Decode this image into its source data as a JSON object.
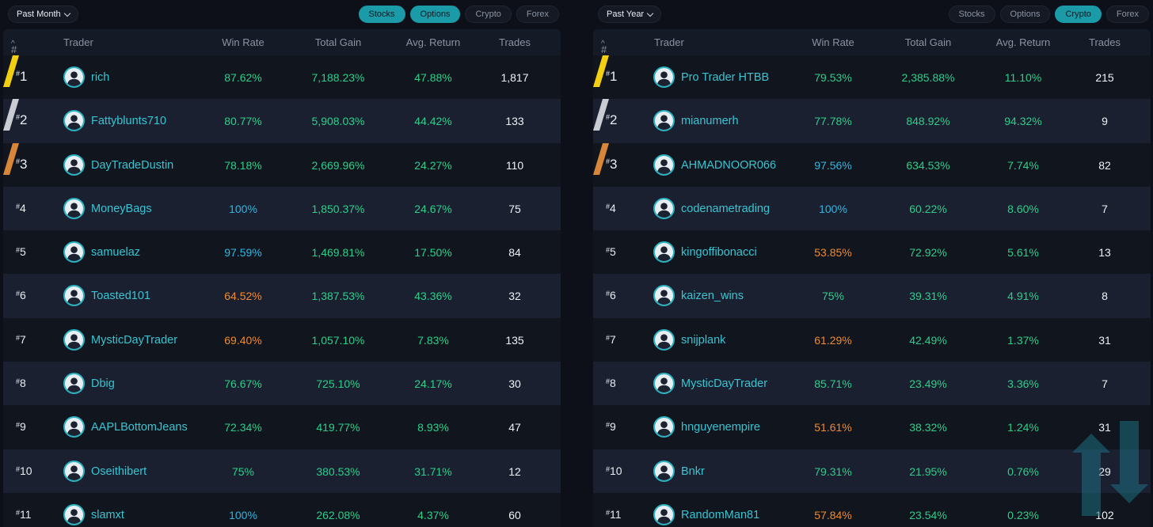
{
  "left": {
    "range": "Past Month",
    "filters": [
      {
        "label": "Stocks",
        "active": true
      },
      {
        "label": "Options",
        "active": true
      },
      {
        "label": "Crypto",
        "active": false
      },
      {
        "label": "Forex",
        "active": false
      }
    ],
    "headers": {
      "rank": "#",
      "trader": "Trader",
      "win_rate": "Win Rate",
      "total_gain": "Total Gain",
      "avg_return": "Avg. Return",
      "trades": "Trades"
    },
    "rows": [
      {
        "rank": "1",
        "trader": "rich",
        "win_rate": "87.62%",
        "win_color": "green",
        "total_gain": "7,188.23%",
        "avg_return": "47.88%",
        "trades": "1,817"
      },
      {
        "rank": "2",
        "trader": "Fattyblunts710",
        "win_rate": "80.77%",
        "win_color": "green",
        "total_gain": "5,908.03%",
        "avg_return": "44.42%",
        "trades": "133"
      },
      {
        "rank": "3",
        "trader": "DayTradeDustin",
        "win_rate": "78.18%",
        "win_color": "green",
        "total_gain": "2,669.96%",
        "avg_return": "24.27%",
        "trades": "110"
      },
      {
        "rank": "4",
        "trader": "MoneyBags",
        "win_rate": "100%",
        "win_color": "blue",
        "total_gain": "1,850.37%",
        "avg_return": "24.67%",
        "trades": "75"
      },
      {
        "rank": "5",
        "trader": "samuelaz",
        "win_rate": "97.59%",
        "win_color": "blue",
        "total_gain": "1,469.81%",
        "avg_return": "17.50%",
        "trades": "84"
      },
      {
        "rank": "6",
        "trader": "Toasted101",
        "win_rate": "64.52%",
        "win_color": "orange",
        "total_gain": "1,387.53%",
        "avg_return": "43.36%",
        "trades": "32"
      },
      {
        "rank": "7",
        "trader": "MysticDayTrader",
        "win_rate": "69.40%",
        "win_color": "orange",
        "total_gain": "1,057.10%",
        "avg_return": "7.83%",
        "trades": "135"
      },
      {
        "rank": "8",
        "trader": "Dbig",
        "win_rate": "76.67%",
        "win_color": "green",
        "total_gain": "725.10%",
        "avg_return": "24.17%",
        "trades": "30"
      },
      {
        "rank": "9",
        "trader": "AAPLBottomJeans",
        "win_rate": "72.34%",
        "win_color": "green",
        "total_gain": "419.77%",
        "avg_return": "8.93%",
        "trades": "47"
      },
      {
        "rank": "10",
        "trader": "Oseithibert",
        "win_rate": "75%",
        "win_color": "green",
        "total_gain": "380.53%",
        "avg_return": "31.71%",
        "trades": "12"
      },
      {
        "rank": "11",
        "trader": "slamxt",
        "win_rate": "100%",
        "win_color": "blue",
        "total_gain": "262.08%",
        "avg_return": "4.37%",
        "trades": "60"
      }
    ]
  },
  "right": {
    "range": "Past Year",
    "filters": [
      {
        "label": "Stocks",
        "active": false
      },
      {
        "label": "Options",
        "active": false
      },
      {
        "label": "Crypto",
        "active": true
      },
      {
        "label": "Forex",
        "active": false
      }
    ],
    "headers": {
      "rank": "#",
      "trader": "Trader",
      "win_rate": "Win Rate",
      "total_gain": "Total Gain",
      "avg_return": "Avg. Return",
      "trades": "Trades"
    },
    "rows": [
      {
        "rank": "1",
        "trader": "Pro Trader HTBB",
        "win_rate": "79.53%",
        "win_color": "green",
        "total_gain": "2,385.88%",
        "avg_return": "11.10%",
        "trades": "215"
      },
      {
        "rank": "2",
        "trader": "mianumerh",
        "win_rate": "77.78%",
        "win_color": "green",
        "total_gain": "848.92%",
        "avg_return": "94.32%",
        "trades": "9"
      },
      {
        "rank": "3",
        "trader": "AHMADNOOR066",
        "win_rate": "97.56%",
        "win_color": "blue",
        "total_gain": "634.53%",
        "avg_return": "7.74%",
        "trades": "82"
      },
      {
        "rank": "4",
        "trader": "codenametrading",
        "win_rate": "100%",
        "win_color": "blue",
        "total_gain": "60.22%",
        "avg_return": "8.60%",
        "trades": "7"
      },
      {
        "rank": "5",
        "trader": "kingoffibonacci",
        "win_rate": "53.85%",
        "win_color": "orange",
        "total_gain": "72.92%",
        "avg_return": "5.61%",
        "trades": "13"
      },
      {
        "rank": "6",
        "trader": "kaizen_wins",
        "win_rate": "75%",
        "win_color": "green",
        "total_gain": "39.31%",
        "avg_return": "4.91%",
        "trades": "8"
      },
      {
        "rank": "7",
        "trader": "snijplank",
        "win_rate": "61.29%",
        "win_color": "orange",
        "total_gain": "42.49%",
        "avg_return": "1.37%",
        "trades": "31"
      },
      {
        "rank": "8",
        "trader": "MysticDayTrader",
        "win_rate": "85.71%",
        "win_color": "green",
        "total_gain": "23.49%",
        "avg_return": "3.36%",
        "trades": "7"
      },
      {
        "rank": "9",
        "trader": "hnguyenempire",
        "win_rate": "51.61%",
        "win_color": "orange",
        "total_gain": "38.32%",
        "avg_return": "1.24%",
        "trades": "31"
      },
      {
        "rank": "10",
        "trader": "Bnkr",
        "win_rate": "79.31%",
        "win_color": "green",
        "total_gain": "21.95%",
        "avg_return": "0.76%",
        "trades": "29"
      },
      {
        "rank": "11",
        "trader": "RandomMan81",
        "win_rate": "57.84%",
        "win_color": "orange",
        "total_gain": "23.54%",
        "avg_return": "0.23%",
        "trades": "102"
      }
    ]
  },
  "colors": {
    "accent": "#1b9aa8",
    "name": "#38c5d2",
    "green": "#2ccf8a",
    "orange": "#f08a2c",
    "blue": "#31b5e0",
    "gold": "#f3cf12",
    "silver": "#c9ccd2",
    "bronze": "#d8873a"
  },
  "icons": {
    "sort": "chevron-up-icon",
    "range_dropdown": "chevron-down-icon",
    "avatar": "user-avatar-icon",
    "watermark": "brand-logo-icon"
  }
}
